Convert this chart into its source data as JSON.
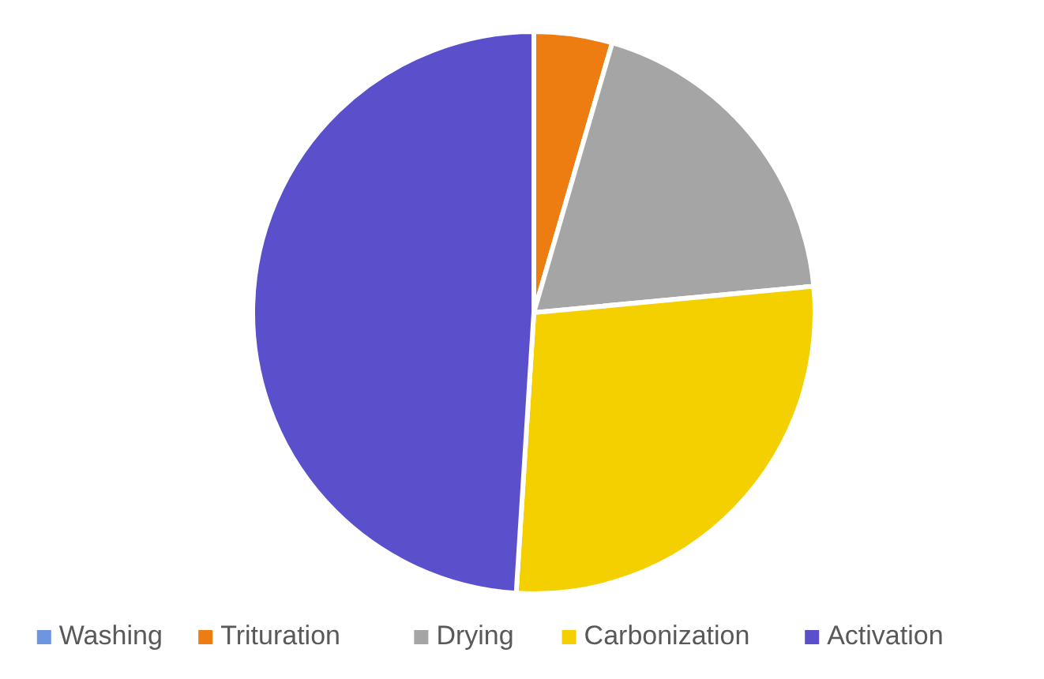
{
  "chart_data": {
    "type": "pie",
    "categories": [
      "Washing",
      "Trituration",
      "Drying",
      "Carbonization",
      "Activation"
    ],
    "values": [
      0,
      4.5,
      19,
      27.5,
      49
    ],
    "colors": [
      "#6e95df",
      "#ed7d11",
      "#a5a5a5",
      "#f5d000",
      "#5b50cc"
    ],
    "legend": "bottom"
  }
}
